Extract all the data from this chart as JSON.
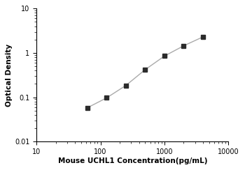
{
  "x_data": [
    62.5,
    125,
    250,
    500,
    1000,
    2000,
    4000
  ],
  "y_data": [
    0.058,
    0.097,
    0.185,
    0.42,
    0.85,
    1.45,
    2.3
  ],
  "xlim": [
    10,
    10000
  ],
  "ylim": [
    0.01,
    10
  ],
  "xlabel": "Mouse UCHL1 Concentration(pg/mL)",
  "ylabel": "Optical Density",
  "line_color": "#aaaaaa",
  "marker_color": "#2b2b2b",
  "marker": "s",
  "marker_size": 4.5,
  "line_width": 1.0,
  "background_color": "#ffffff",
  "xticks": [
    10,
    100,
    1000,
    10000
  ],
  "yticks": [
    0.01,
    0.1,
    1,
    10
  ],
  "ytick_labels": [
    "0.01",
    "0.1",
    "1",
    "10"
  ],
  "xtick_labels": [
    "10",
    "100",
    "1000",
    "10000"
  ]
}
